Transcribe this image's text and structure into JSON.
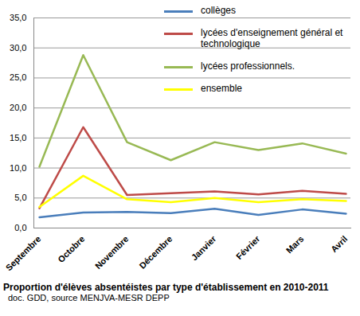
{
  "chart_data": {
    "type": "line",
    "title": "Proportion d'élèves absentéistes par type d'établissement en 2010-2011",
    "subtitle": "doc. GDD, source MENJVA-MESR DEPP",
    "categories": [
      "Septembre",
      "Octobre",
      "Novembre",
      "Décembre",
      "Janvier",
      "Février",
      "Mars",
      "Avril"
    ],
    "series": [
      {
        "name": "collèges",
        "color": "#4a7ebb",
        "values": [
          1.8,
          2.6,
          2.7,
          2.5,
          3.2,
          2.2,
          3.1,
          2.4
        ]
      },
      {
        "name": "lycées d'enseignement général et technologique",
        "color": "#be4b48",
        "values": [
          3.3,
          16.8,
          5.5,
          5.8,
          6.1,
          5.6,
          6.2,
          5.7
        ]
      },
      {
        "name": "lycées professionnels.",
        "color": "#98b954",
        "values": [
          10.2,
          28.8,
          14.3,
          11.3,
          14.3,
          13.0,
          14.1,
          12.4
        ]
      },
      {
        "name": "ensemble",
        "color": "#ffff00",
        "values": [
          3.5,
          8.7,
          4.8,
          4.3,
          5.0,
          4.3,
          4.8,
          4.5
        ]
      }
    ],
    "ylim": [
      0,
      35
    ],
    "yticks": [
      {
        "value": 0,
        "label": "0,0"
      },
      {
        "value": 5,
        "label": "5,0"
      },
      {
        "value": 10,
        "label": "10,0"
      },
      {
        "value": 15,
        "label": "15,0"
      },
      {
        "value": 20,
        "label": "20,0"
      },
      {
        "value": 25,
        "label": "25,0"
      },
      {
        "value": 30,
        "label": "30,0"
      },
      {
        "value": 35,
        "label": "35,0"
      }
    ],
    "grid": true,
    "legend": "top-right"
  }
}
